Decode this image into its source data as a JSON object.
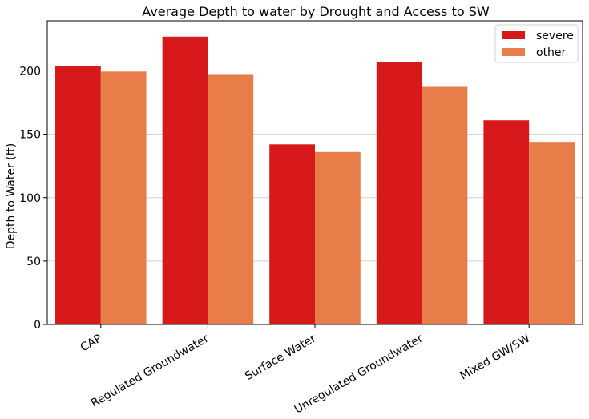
{
  "chart_data": {
    "type": "bar",
    "title": "Average Depth to water by Drought and Access to SW",
    "xlabel": "",
    "ylabel": "Depth to Water (ft)",
    "categories": [
      "CAP",
      "Regulated Groundwater",
      "Surface Water",
      "Unregulated Groundwater",
      "Mixed GW/SW"
    ],
    "series": [
      {
        "name": "severe",
        "color": "#d7191c",
        "values": [
          204,
          227,
          142,
          207,
          161
        ]
      },
      {
        "name": "other",
        "color": "#e87d4a",
        "values": [
          199.5,
          197.5,
          136,
          188,
          144
        ]
      }
    ],
    "ylim": [
      0,
      239.5
    ],
    "yticks": [
      0,
      50,
      100,
      150,
      200
    ],
    "grid": "y",
    "legend_position": "top-right"
  }
}
